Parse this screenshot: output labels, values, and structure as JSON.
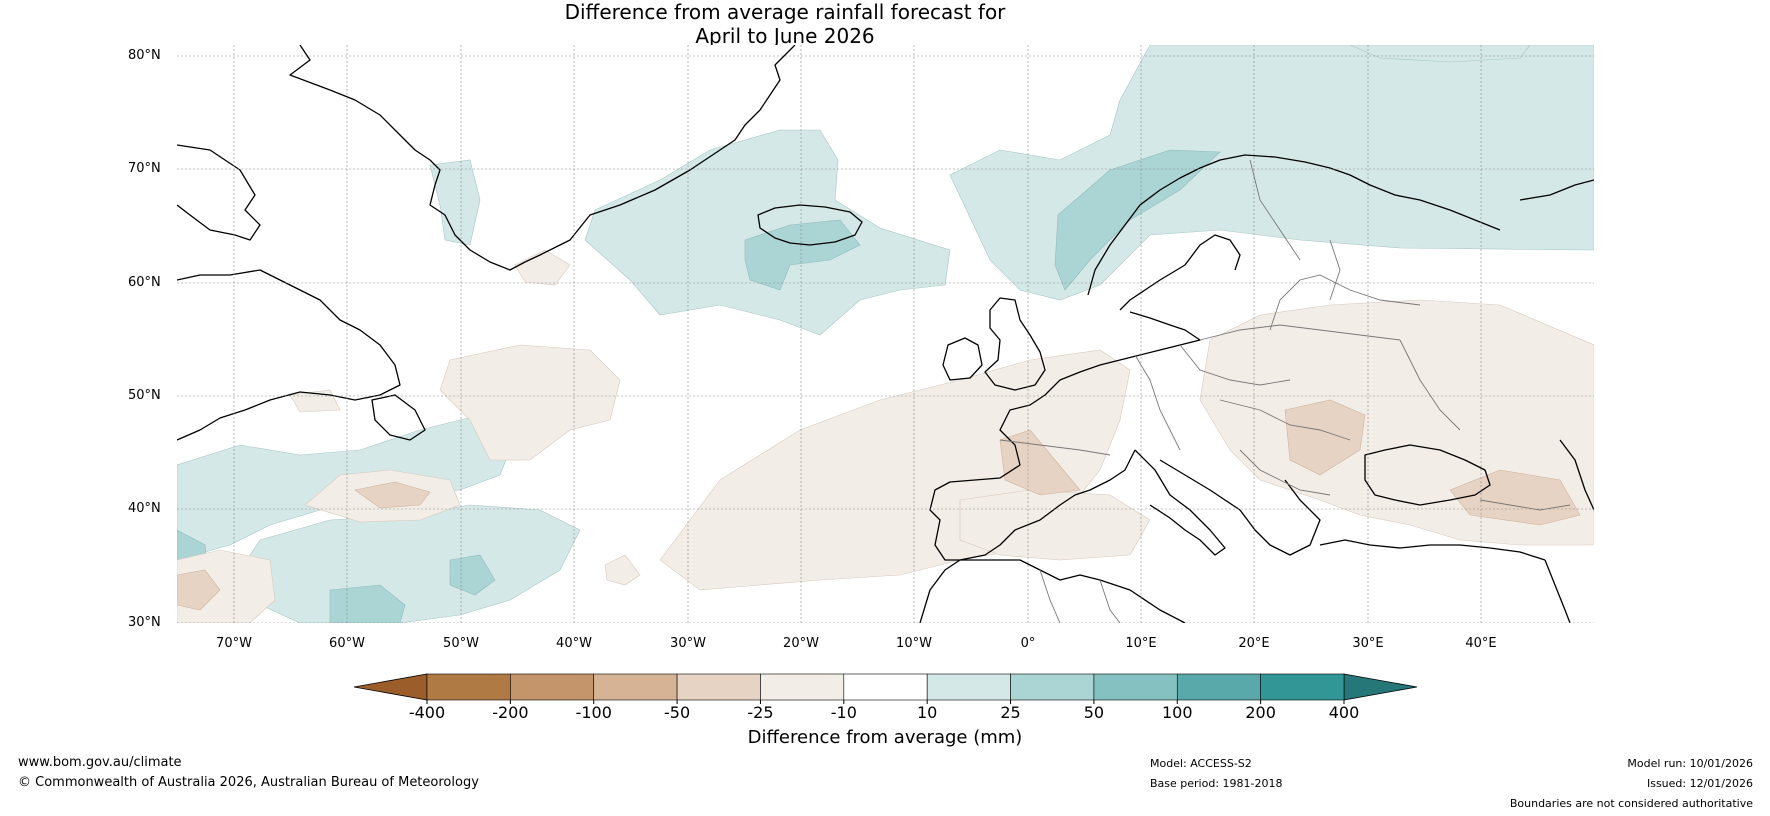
{
  "title_line1": "Difference from average rainfall forecast for",
  "title_line2": "April to June 2026",
  "latitude_labels": [
    "80°N",
    "70°N",
    "60°N",
    "50°N",
    "40°N",
    "30°N"
  ],
  "longitude_labels": [
    "70°W",
    "60°W",
    "50°W",
    "40°W",
    "30°W",
    "20°W",
    "10°W",
    "0°",
    "10°E",
    "20°E",
    "30°E",
    "40°E"
  ],
  "colorbar": {
    "ticks": [
      "-400",
      "-200",
      "-100",
      "-50",
      "-25",
      "-10",
      "10",
      "25",
      "50",
      "100",
      "200",
      "400"
    ],
    "colors": [
      "#9b5e2a",
      "#b07a45",
      "#c4956a",
      "#d6b395",
      "#e7d3c3",
      "#f3ede8",
      "#ffffff",
      "#d5e8e8",
      "#abd5d4",
      "#84c1c0",
      "#5aa9aa",
      "#329696",
      "#267878"
    ],
    "label": "Difference from average (mm)"
  },
  "footer": {
    "url": "www.bom.gov.au/climate",
    "copyright": "© Commonwealth of Australia 2026, Australian Bureau of Meteorology",
    "model": "Model: ACCESS-S2",
    "base_period": "Base period: 1981-2018",
    "model_run": "Model run: 10/01/2026",
    "issued": "Issued: 12/01/2026",
    "disclaimer": "Boundaries are not considered authoritative"
  }
}
